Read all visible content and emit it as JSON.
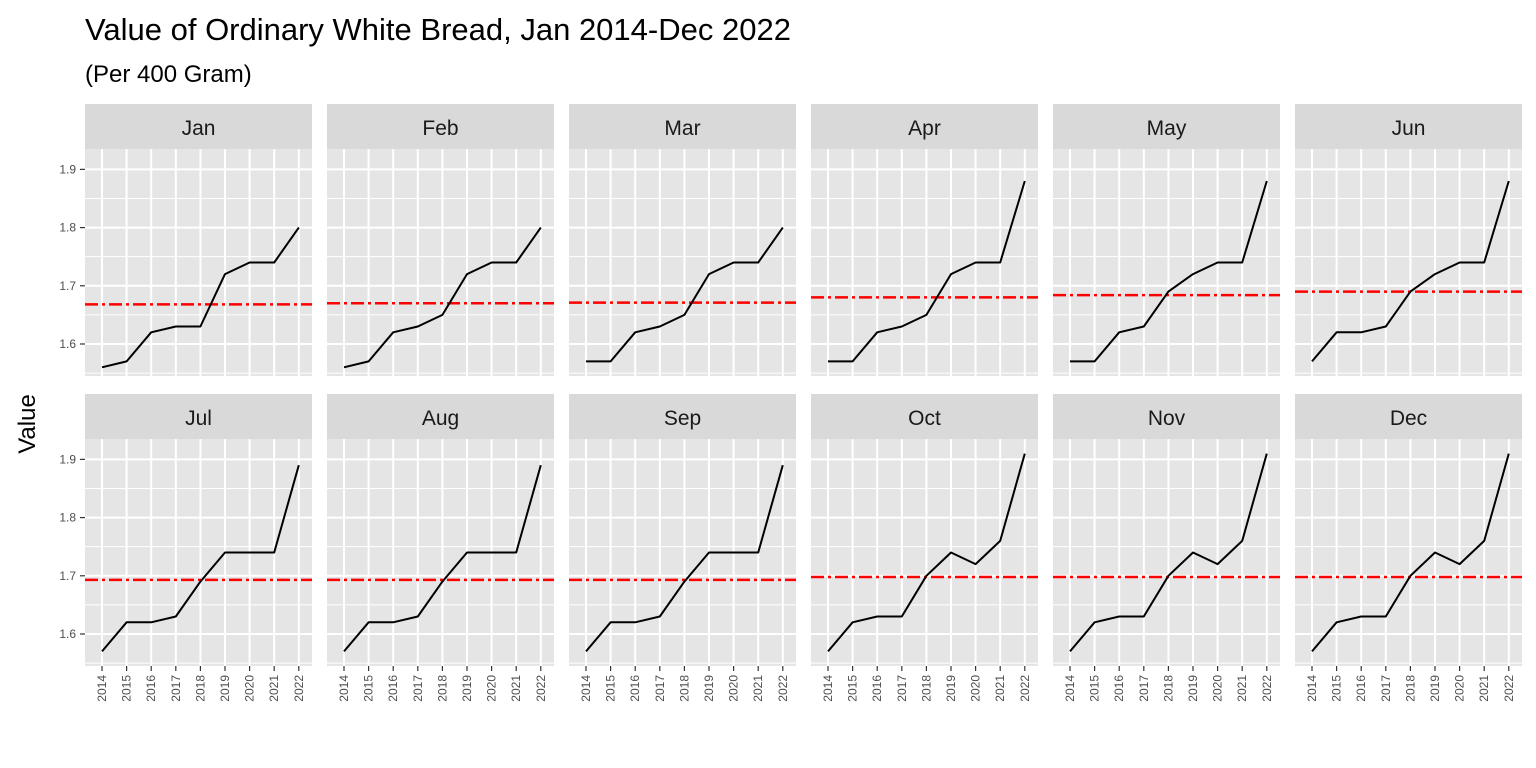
{
  "title": "Value of Ordinary White Bread, Jan 2014-Dec 2022",
  "subtitle": "(Per 400 Gram)",
  "chart_data": {
    "type": "line",
    "title": "Value of Ordinary White Bread, Jan 2014-Dec 2022",
    "subtitle": "(Per 400 Gram)",
    "xlabel": "",
    "ylabel": "Value",
    "x": [
      "2014",
      "2015",
      "2016",
      "2017",
      "2018",
      "2019",
      "2020",
      "2021",
      "2022"
    ],
    "y_ticks": [
      "1.6",
      "1.7",
      "1.8",
      "1.9"
    ],
    "ylim": [
      1.545,
      1.935
    ],
    "grid": true,
    "facets": [
      {
        "label": "Jan",
        "values": [
          1.56,
          1.57,
          1.62,
          1.63,
          1.63,
          1.72,
          1.74,
          1.74,
          1.8
        ],
        "mean": 1.668
      },
      {
        "label": "Feb",
        "values": [
          1.56,
          1.57,
          1.62,
          1.63,
          1.65,
          1.72,
          1.74,
          1.74,
          1.8
        ],
        "mean": 1.67
      },
      {
        "label": "Mar",
        "values": [
          1.57,
          1.57,
          1.62,
          1.63,
          1.65,
          1.72,
          1.74,
          1.74,
          1.8
        ],
        "mean": 1.671
      },
      {
        "label": "Apr",
        "values": [
          1.57,
          1.57,
          1.62,
          1.63,
          1.65,
          1.72,
          1.74,
          1.74,
          1.88
        ],
        "mean": 1.68
      },
      {
        "label": "May",
        "values": [
          1.57,
          1.57,
          1.62,
          1.63,
          1.69,
          1.72,
          1.74,
          1.74,
          1.88
        ],
        "mean": 1.684
      },
      {
        "label": "Jun",
        "values": [
          1.57,
          1.62,
          1.62,
          1.63,
          1.69,
          1.72,
          1.74,
          1.74,
          1.88
        ],
        "mean": 1.69
      },
      {
        "label": "Jul",
        "values": [
          1.57,
          1.62,
          1.62,
          1.63,
          1.69,
          1.74,
          1.74,
          1.74,
          1.89
        ],
        "mean": 1.693
      },
      {
        "label": "Aug",
        "values": [
          1.57,
          1.62,
          1.62,
          1.63,
          1.69,
          1.74,
          1.74,
          1.74,
          1.89
        ],
        "mean": 1.693
      },
      {
        "label": "Sep",
        "values": [
          1.57,
          1.62,
          1.62,
          1.63,
          1.69,
          1.74,
          1.74,
          1.74,
          1.89
        ],
        "mean": 1.693
      },
      {
        "label": "Oct",
        "values": [
          1.57,
          1.62,
          1.63,
          1.63,
          1.7,
          1.74,
          1.72,
          1.76,
          1.91
        ],
        "mean": 1.698
      },
      {
        "label": "Nov",
        "values": [
          1.57,
          1.62,
          1.63,
          1.63,
          1.7,
          1.74,
          1.72,
          1.76,
          1.91
        ],
        "mean": 1.698
      },
      {
        "label": "Dec",
        "values": [
          1.57,
          1.62,
          1.63,
          1.63,
          1.7,
          1.74,
          1.72,
          1.76,
          1.91
        ],
        "mean": 1.698
      }
    ],
    "colors": {
      "series": "#000000",
      "mean_line": "#ff0000",
      "panel_background": "#e5e5e5",
      "strip_background": "#d9d9d9",
      "grid": "#ffffff"
    }
  }
}
